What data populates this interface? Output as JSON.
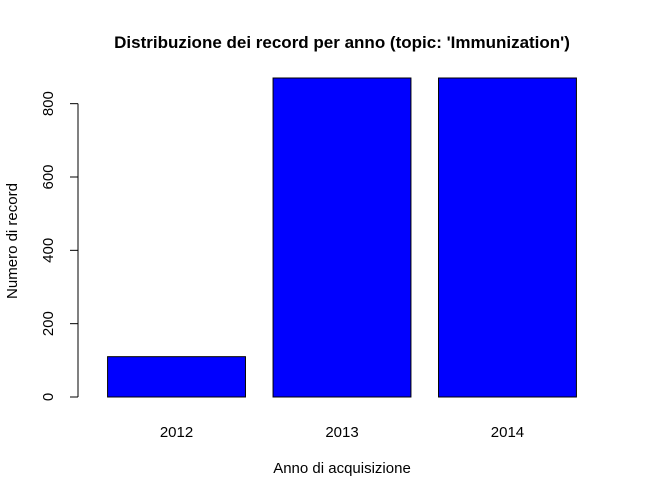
{
  "chart_data": {
    "type": "bar",
    "title": "Distribuzione dei record per anno (topic: 'Immunization')",
    "xlabel": "Anno di acquisizione",
    "ylabel": "Numero di record",
    "categories": [
      "2012",
      "2013",
      "2014"
    ],
    "values": [
      110,
      870,
      870
    ],
    "ylim": [
      0,
      870
    ],
    "yticks": [
      "0",
      "200",
      "400",
      "600",
      "800"
    ],
    "bar_color": "#0000ff",
    "bar_border_color": "#000000",
    "grid": false,
    "legend": "none"
  }
}
